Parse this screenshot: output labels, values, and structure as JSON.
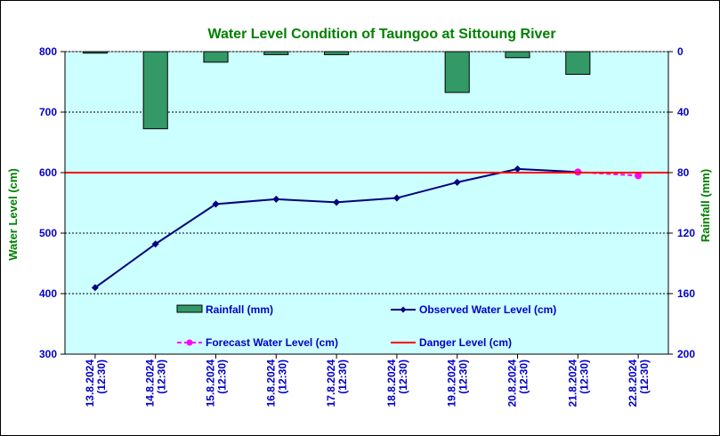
{
  "chart_data": {
    "type": "line",
    "title": "Water Level Condition of Taungoo at  Sittoung River",
    "ylabel": "Water Level (cm)",
    "y2label": "Rainfall (mm)",
    "ylim": [
      300,
      800
    ],
    "y2lim": [
      0,
      200
    ],
    "y2_inverted": true,
    "yticks": [
      300,
      400,
      500,
      600,
      700,
      800
    ],
    "y2ticks": [
      0,
      40,
      80,
      120,
      160,
      200
    ],
    "categories": [
      [
        "13.8.2024",
        "(12:30)"
      ],
      [
        "14.8.2024",
        "(12:30)"
      ],
      [
        "15.8.2024",
        "(12:30)"
      ],
      [
        "16.8.2024",
        "(12:30)"
      ],
      [
        "17.8.2024",
        "(12:30)"
      ],
      [
        "18.8.2024",
        "(12:30)"
      ],
      [
        "19.8.2024",
        "(12:30)"
      ],
      [
        "20.8.2024",
        "(12:30)"
      ],
      [
        "21.8.2024",
        "(12:30)"
      ],
      [
        "22.8.2024",
        "(12:30)"
      ]
    ],
    "grid": "horizontal dotted",
    "legend_placement": "inside-bottom",
    "series": [
      {
        "name": "Rainfall (mm)",
        "type": "bar",
        "axis": "right",
        "color": "#339966",
        "values": [
          1,
          51,
          7,
          2,
          2,
          0,
          27,
          4,
          15,
          null
        ]
      },
      {
        "name": "Observed Water Level (cm)",
        "type": "line",
        "axis": "left",
        "color": "#000080",
        "marker": "diamond",
        "values": [
          410,
          482,
          548,
          556,
          551,
          558,
          584,
          606,
          601,
          null
        ]
      },
      {
        "name": "Forecast Water Level (cm)",
        "type": "line",
        "axis": "left",
        "color": "#FF00FF",
        "dashed": true,
        "marker": "circle",
        "values": [
          null,
          null,
          null,
          null,
          null,
          null,
          null,
          null,
          601,
          595
        ]
      },
      {
        "name": "Danger Level (cm)",
        "type": "hline",
        "axis": "left",
        "color": "#FF0000",
        "value": 600
      }
    ],
    "colors": {
      "plot_background": "#CCFFFF",
      "title": "#008000",
      "axis_titles": "#008000",
      "tick_labels": "#0000CC",
      "legend_text": "#0000CC"
    }
  }
}
